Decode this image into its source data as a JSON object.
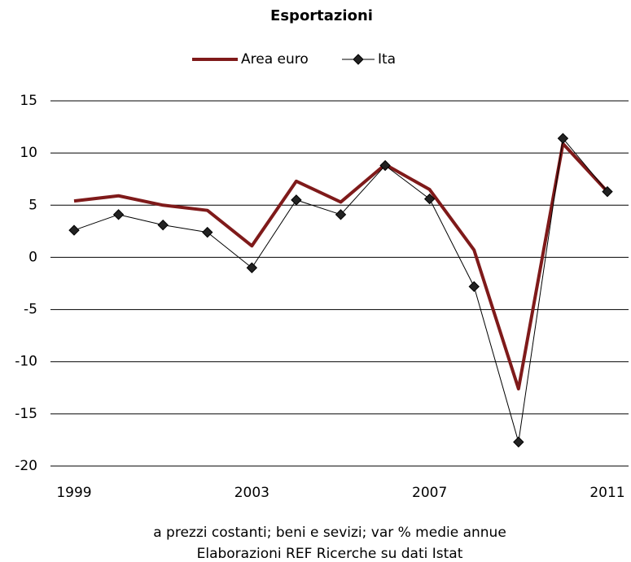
{
  "chart_data": {
    "type": "line",
    "title": "Esportazioni",
    "x": [
      1999,
      2000,
      2001,
      2002,
      2003,
      2004,
      2005,
      2006,
      2007,
      2008,
      2009,
      2010,
      2011
    ],
    "series": [
      {
        "name": "Area euro",
        "color": "#7f1a1a",
        "values": [
          5.4,
          5.9,
          5.0,
          4.5,
          1.1,
          7.3,
          5.3,
          8.9,
          6.5,
          0.7,
          -12.6,
          10.9,
          6.3
        ]
      },
      {
        "name": "Ita",
        "color": "#000000",
        "values": [
          2.6,
          4.1,
          3.1,
          2.4,
          -1.0,
          5.5,
          4.1,
          8.8,
          5.6,
          -2.8,
          -17.7,
          11.4,
          6.3
        ]
      }
    ],
    "xlim": [
      1999,
      2011
    ],
    "xticks": [
      1999,
      2003,
      2007,
      2011
    ],
    "ylim": [
      -20,
      15
    ],
    "yticks": [
      -20,
      -15,
      -10,
      -5,
      0,
      5,
      10,
      15
    ],
    "grid": true,
    "legend": "top",
    "notes": [
      "a prezzi costanti; beni e sevizi; var % medie annue",
      "Elaborazioni REF Ricerche su dati Istat"
    ]
  }
}
